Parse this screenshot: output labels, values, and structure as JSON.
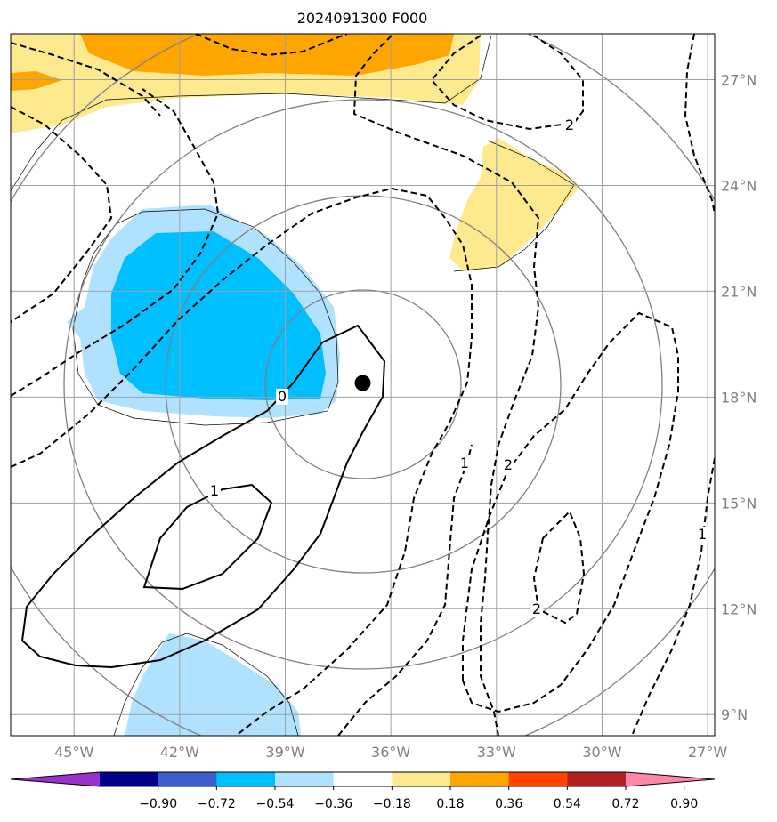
{
  "chart_data": {
    "type": "contour-map",
    "title": "2024091300 F000",
    "x_ticks": [
      "45°W",
      "42°W",
      "39°W",
      "36°W",
      "33°W",
      "30°W",
      "27°W"
    ],
    "y_ticks": [
      "9°N",
      "12°N",
      "15°N",
      "18°N",
      "21°N",
      "24°N",
      "27°N"
    ],
    "lon_range": [
      -46.8,
      -26.8
    ],
    "lat_range": [
      8.4,
      28.3
    ],
    "grid": true,
    "colorbar": {
      "ticks": [
        "−0.90",
        "−0.72",
        "−0.54",
        "−0.36",
        "−0.18",
        "0.18",
        "0.36",
        "0.54",
        "0.72",
        "0.90"
      ],
      "colors": [
        "#9932cc",
        "#00008b",
        "#3a5fcd",
        "#00bfff",
        "#b0e2ff",
        "#ffffff",
        "#ffe98f",
        "#ffa500",
        "#ff4500",
        "#b22222",
        "#ff88aa"
      ],
      "extend": "both"
    },
    "contour_labels": {
      "solid": [
        "0",
        "1"
      ],
      "dashed": [
        "2",
        "1",
        "2",
        "1",
        "2"
      ]
    },
    "storm_center": {
      "lon": -36.8,
      "lat": 18.4
    }
  }
}
